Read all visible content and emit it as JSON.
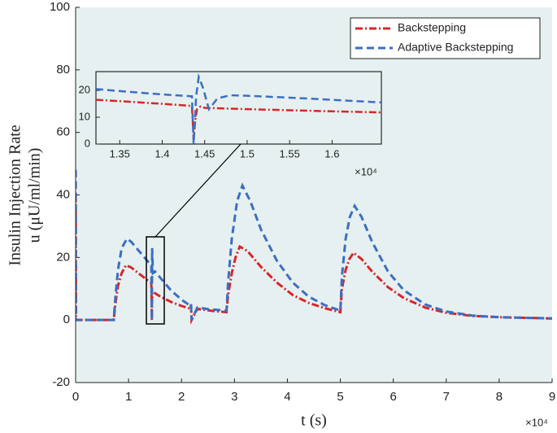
{
  "chart_data": [
    {
      "type": "line",
      "xlabel": "t (s)",
      "ylabel": [
        "Insulin Injection Rate",
        "u (μU/ml/min)"
      ],
      "x_multiplier": "×10⁴",
      "xlim": [
        0,
        9
      ],
      "xticks": [
        0,
        1,
        2,
        3,
        4,
        5,
        6,
        7,
        8,
        9
      ],
      "ylim": [
        -20,
        100
      ],
      "yticks": [
        -20,
        0,
        20,
        40,
        60,
        80,
        100
      ],
      "legend": "northeast",
      "background": "#e6f0f0",
      "series": [
        {
          "name": "Backstepping",
          "color": "#d7262b",
          "dash": "dash-dot",
          "x": [
            0,
            0.005,
            0.01,
            0.72,
            0.75,
            0.8,
            0.87,
            0.95,
            1.05,
            1.2,
            1.35,
            1.43,
            1.44,
            1.445,
            1.46,
            1.6,
            1.8,
            2.0,
            2.17,
            2.18,
            2.19,
            2.3,
            2.5,
            2.7,
            2.85,
            2.88,
            2.95,
            3.02,
            3.1,
            3.25,
            3.5,
            3.8,
            4.1,
            4.4,
            4.7,
            5.0,
            5.03,
            5.1,
            5.17,
            5.25,
            5.4,
            5.6,
            5.9,
            6.2,
            6.6,
            7.0,
            7.5,
            8.0,
            8.5,
            9.0
          ],
          "values": [
            40,
            0,
            0,
            0,
            5,
            11,
            15,
            17.5,
            16.8,
            14.8,
            12.8,
            12,
            0,
            9,
            9,
            7.5,
            5.8,
            4.5,
            3.6,
            5,
            0,
            3.6,
            3.1,
            2.7,
            2.5,
            8,
            15,
            20,
            23.5,
            22,
            17,
            12,
            8,
            5.5,
            3.8,
            2.5,
            10,
            16,
            19.5,
            21.5,
            19.5,
            15.5,
            10.5,
            7,
            4,
            2.3,
            1.3,
            0.9,
            0.7,
            0.5
          ]
        },
        {
          "name": "Adaptive Backstepping",
          "color": "#3c6fc2",
          "dash": "dashed",
          "x": [
            0,
            0.005,
            0.01,
            0.72,
            0.75,
            0.8,
            0.87,
            0.97,
            1.05,
            1.2,
            1.35,
            1.43,
            1.44,
            1.445,
            1.46,
            1.5,
            1.6,
            1.8,
            2.0,
            2.17,
            2.18,
            2.19,
            2.3,
            2.5,
            2.7,
            2.85,
            2.88,
            2.95,
            3.05,
            3.15,
            3.3,
            3.5,
            3.8,
            4.1,
            4.4,
            4.7,
            5.0,
            5.03,
            5.1,
            5.18,
            5.27,
            5.4,
            5.6,
            5.9,
            6.2,
            6.6,
            7.0,
            7.5,
            8.0,
            8.5,
            9.0
          ],
          "values": [
            48,
            0,
            0,
            0,
            7,
            16,
            23,
            26,
            25,
            22,
            19,
            17.5,
            0,
            23,
            15,
            15.5,
            13.5,
            9.5,
            6.5,
            4.5,
            5,
            0,
            4,
            3.5,
            3.2,
            3,
            12,
            26,
            38,
            43,
            38,
            29,
            19,
            12,
            7.5,
            4.8,
            3,
            14,
            26,
            33,
            36.5,
            33,
            25,
            15.5,
            9.5,
            5,
            2.7,
            1.4,
            0.9,
            0.7,
            0.5
          ]
        }
      ]
    },
    {
      "type": "line",
      "x_multiplier": "×10⁴",
      "xlim": [
        1.322,
        1.658
      ],
      "xticks": [
        1.35,
        1.4,
        1.45,
        1.5,
        1.55,
        1.6
      ],
      "ylim": [
        0,
        27
      ],
      "yticks": [
        0,
        10,
        20
      ],
      "background": "#e6f0f0",
      "series": [
        {
          "color": "#d7262b",
          "dash": "dash-dot",
          "x": [
            1.322,
            1.36,
            1.4,
            1.435,
            1.437,
            1.439,
            1.441,
            1.445,
            1.45,
            1.5,
            1.55,
            1.6,
            1.658
          ],
          "values": [
            16.5,
            15.8,
            15,
            14.2,
            2,
            9,
            13,
            14,
            13.5,
            13,
            12.6,
            12.2,
            11.8
          ]
        },
        {
          "color": "#3c6fc2",
          "dash": "dashed",
          "x": [
            1.322,
            1.36,
            1.4,
            1.435,
            1.437,
            1.44,
            1.443,
            1.448,
            1.455,
            1.465,
            1.48,
            1.5,
            1.55,
            1.6,
            1.658
          ],
          "values": [
            20.5,
            19.5,
            18.5,
            17.8,
            0,
            18,
            25,
            21,
            13,
            17,
            18.2,
            18,
            17.3,
            16.5,
            15.5
          ]
        }
      ]
    }
  ]
}
